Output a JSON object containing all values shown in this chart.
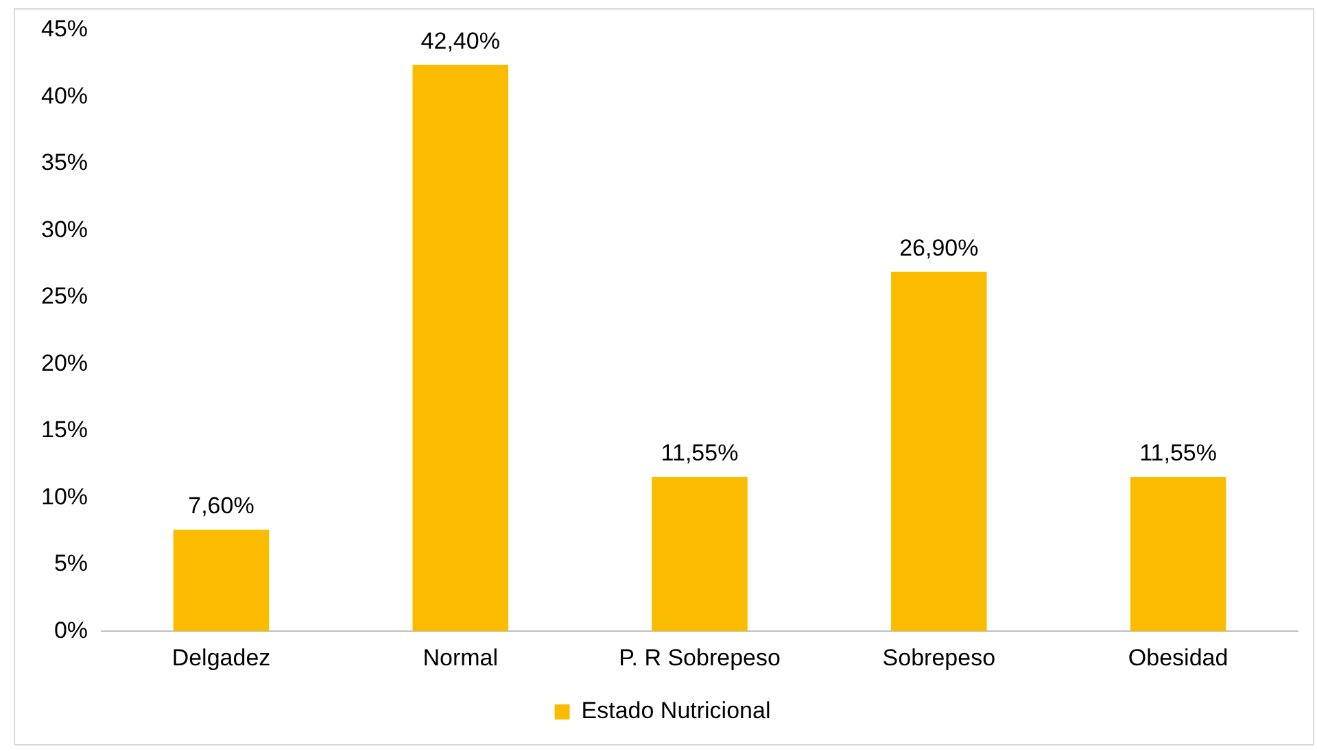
{
  "chart_data": {
    "type": "bar",
    "categories": [
      "Delgadez",
      "Normal",
      "P. R Sobrepeso",
      "Sobrepeso",
      "Obesidad"
    ],
    "series": [
      {
        "name": "Estado Nutricional",
        "color": "#fbbc00",
        "values": [
          7.6,
          42.4,
          11.55,
          26.9,
          11.55
        ],
        "value_labels": [
          "7,60%",
          "42,40%",
          "11,55%",
          "26,90%",
          "11,55%"
        ]
      }
    ],
    "ylim": [
      0,
      45
    ],
    "yticks": [
      {
        "value": 0,
        "label": "0%"
      },
      {
        "value": 5,
        "label": "5%"
      },
      {
        "value": 10,
        "label": "10%"
      },
      {
        "value": 15,
        "label": "15%"
      },
      {
        "value": 20,
        "label": "20%"
      },
      {
        "value": 25,
        "label": "25%"
      },
      {
        "value": 30,
        "label": "30%"
      },
      {
        "value": 35,
        "label": "35%"
      },
      {
        "value": 40,
        "label": "40%"
      },
      {
        "value": 45,
        "label": "45%"
      }
    ],
    "grid": false,
    "legend": "bottom"
  }
}
